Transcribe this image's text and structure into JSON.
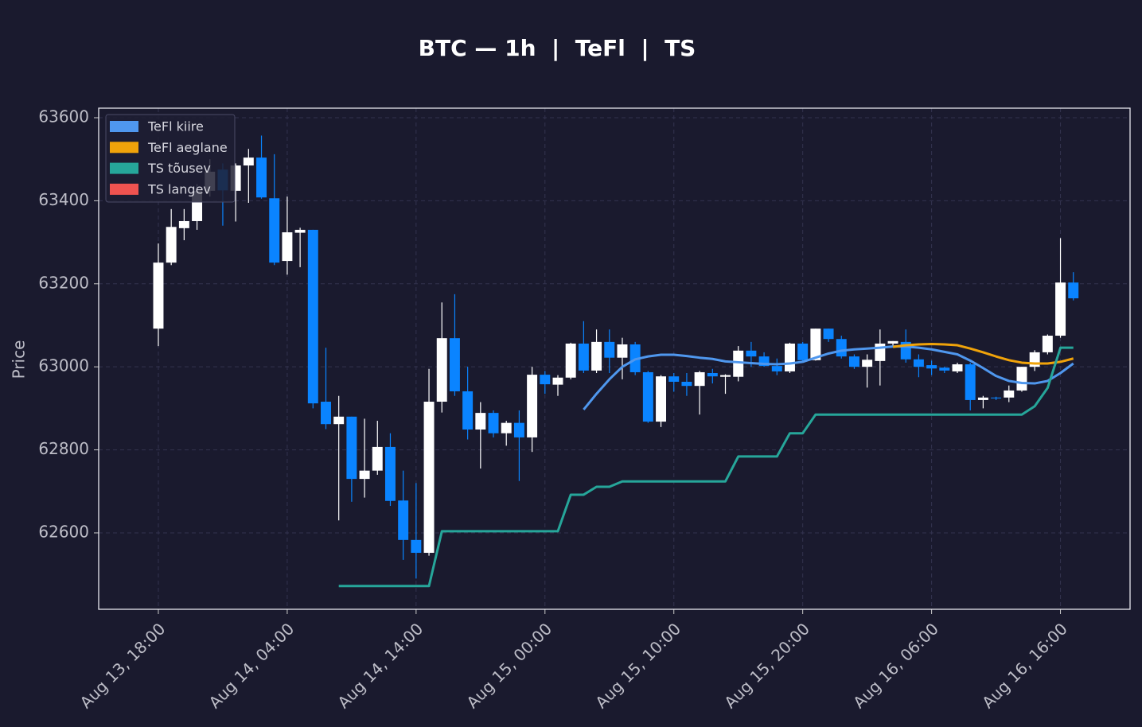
{
  "chart_data": {
    "type": "candlestick",
    "title": "BTC — 1h  |  TeFl  |  TS",
    "y_label": "Price",
    "xlim": [
      -4.63,
      75.4
    ],
    "ylim": [
      62416,
      63623
    ],
    "yticks": [
      62600,
      62800,
      63000,
      63200,
      63400,
      63600
    ],
    "xticks": [
      {
        "value": 0,
        "label": "Aug 13, 18:00"
      },
      {
        "value": 10,
        "label": "Aug 14, 04:00"
      },
      {
        "value": 20,
        "label": "Aug 14, 14:00"
      },
      {
        "value": 30,
        "label": "Aug 15, 00:00"
      },
      {
        "value": 40,
        "label": "Aug 15, 10:00"
      },
      {
        "value": 50,
        "label": "Aug 15, 20:00"
      },
      {
        "value": 60,
        "label": "Aug 16, 06:00"
      },
      {
        "value": 70,
        "label": "Aug 16, 16:00"
      }
    ],
    "grid": true,
    "legend": "upper left",
    "up_color": "#ffffff",
    "down_color": "#0a84ff",
    "open": [
      63092,
      63251,
      63334,
      63351,
      63424,
      63475,
      63424,
      63485,
      63504,
      63406,
      63255,
      63323,
      63330,
      62916,
      62862,
      62880,
      62730,
      62750,
      62807,
      62678,
      62583,
      62552,
      62916,
      63069,
      62941,
      62849,
      62889,
      62840,
      62865,
      62830,
      62981,
      62957,
      62974,
      63056,
      62991,
      63060,
      63022,
      63054,
      62987,
      62868,
      62977,
      62964,
      62954,
      62985,
      62976,
      62976,
      63039,
      63025,
      63002,
      62989,
      63056,
      63016,
      63092,
      63067,
      63025,
      63000,
      63014,
      63056,
      63060,
      63018,
      63004,
      62998,
      62989,
      63006,
      62920,
      62926,
      62926,
      62943,
      63000,
      63035,
      63075,
      63203
    ],
    "high": [
      63297,
      63380,
      63380,
      63440,
      63500,
      63490,
      63490,
      63525,
      63557,
      63512,
      63410,
      63335,
      63330,
      63046,
      62930,
      62880,
      62875,
      62870,
      62840,
      62750,
      62720,
      62995,
      63155,
      63175,
      63000,
      62915,
      62895,
      62870,
      62895,
      63000,
      62990,
      62980,
      63058,
      63110,
      63090,
      63090,
      63070,
      63060,
      62990,
      62980,
      62985,
      62985,
      62990,
      62995,
      62982,
      63050,
      63060,
      63035,
      63020,
      63058,
      63060,
      63092,
      63092,
      63075,
      63030,
      63030,
      63090,
      63062,
      63090,
      63030,
      63015,
      63000,
      63010,
      63010,
      62930,
      62928,
      62955,
      63000,
      63040,
      63078,
      63310,
      63228
    ],
    "low": [
      63050,
      63245,
      63305,
      63330,
      63410,
      63340,
      63350,
      63395,
      63405,
      63245,
      63222,
      63240,
      62900,
      62850,
      62630,
      62675,
      62685,
      62740,
      62665,
      62535,
      62490,
      62545,
      62890,
      62930,
      62825,
      62755,
      62830,
      62810,
      62725,
      62795,
      62935,
      62930,
      62970,
      62985,
      62985,
      62985,
      62970,
      62980,
      62865,
      62855,
      62940,
      62930,
      62885,
      62960,
      62935,
      62965,
      63000,
      63000,
      62980,
      62985,
      63010,
      63015,
      63060,
      63020,
      62995,
      62950,
      62955,
      63050,
      63010,
      62975,
      62980,
      62985,
      62985,
      62895,
      62900,
      62920,
      62915,
      62940,
      62990,
      63030,
      63070,
      63160
    ],
    "close": [
      63251,
      63337,
      63351,
      63424,
      63470,
      63425,
      63485,
      63504,
      63408,
      63251,
      63324,
      63330,
      62912,
      62862,
      62880,
      62730,
      62750,
      62807,
      62677,
      62583,
      62552,
      62916,
      63069,
      62941,
      62849,
      62889,
      62840,
      62865,
      62830,
      62981,
      62958,
      62974,
      63056,
      62991,
      63060,
      63022,
      63054,
      62987,
      62868,
      62977,
      62964,
      62954,
      62987,
      62977,
      62980,
      63039,
      63025,
      63002,
      62989,
      63056,
      63016,
      63092,
      63067,
      63025,
      63000,
      63017,
      63056,
      63062,
      63018,
      63000,
      62996,
      62991,
      63006,
      62920,
      62926,
      62924,
      62943,
      63000,
      63035,
      63075,
      63203,
      63165
    ],
    "series": [
      {
        "name": "TeFl kiire",
        "color": "#4f97ee",
        "values": [
          null,
          null,
          null,
          null,
          null,
          null,
          null,
          null,
          null,
          null,
          null,
          null,
          null,
          null,
          null,
          null,
          null,
          null,
          null,
          null,
          null,
          null,
          null,
          null,
          null,
          null,
          null,
          null,
          null,
          null,
          null,
          null,
          null,
          62897,
          62935,
          62970,
          63000,
          63018,
          63025,
          63029,
          63029,
          63026,
          63022,
          63019,
          63013,
          63011,
          63009,
          63007,
          63006,
          63008,
          63012,
          63022,
          63032,
          63039,
          63042,
          63044,
          63046,
          63049,
          63049,
          63046,
          63042,
          63036,
          63030,
          63015,
          62997,
          62978,
          62966,
          62961,
          62960,
          62966,
          62985,
          63008
        ]
      },
      {
        "name": "TeFl aeglane",
        "color": "#f0a30a",
        "values": [
          null,
          null,
          null,
          null,
          null,
          null,
          null,
          null,
          null,
          null,
          null,
          null,
          null,
          null,
          null,
          null,
          null,
          null,
          null,
          null,
          null,
          null,
          null,
          null,
          null,
          null,
          null,
          null,
          null,
          null,
          null,
          null,
          null,
          null,
          null,
          null,
          null,
          null,
          null,
          null,
          null,
          null,
          null,
          null,
          null,
          null,
          null,
          null,
          null,
          null,
          null,
          null,
          null,
          null,
          null,
          null,
          null,
          63048,
          63052,
          63054,
          63055,
          63054,
          63052,
          63044,
          63035,
          63025,
          63016,
          63010,
          63008,
          63008,
          63012,
          63020
        ]
      },
      {
        "name": "TS tõusev",
        "color": "#26a69a",
        "values": [
          null,
          null,
          null,
          null,
          null,
          null,
          null,
          null,
          null,
          null,
          null,
          null,
          null,
          null,
          62472,
          62472,
          62472,
          62472,
          62472,
          62472,
          62472,
          62472,
          62604,
          62604,
          62604,
          62604,
          62604,
          62604,
          62604,
          62604,
          62604,
          62604,
          62692,
          62692,
          62711,
          62711,
          62724,
          62724,
          62724,
          62724,
          62724,
          62724,
          62724,
          62724,
          62724,
          62784,
          62784,
          62784,
          62784,
          62840,
          62840,
          62885,
          62885,
          62885,
          62885,
          62885,
          62885,
          62885,
          62885,
          62885,
          62885,
          62885,
          62885,
          62885,
          62885,
          62885,
          62885,
          62885,
          62905,
          62949,
          63046,
          63046
        ]
      },
      {
        "name": "TS langev",
        "color": "#ef5350",
        "values": [
          null,
          null,
          null,
          null,
          null,
          null,
          null,
          null,
          null,
          null,
          null,
          null,
          null,
          null,
          null,
          null,
          null,
          null,
          null,
          null,
          null,
          null,
          null,
          null,
          null,
          null,
          null,
          null,
          null,
          null,
          null,
          null,
          null,
          null,
          null,
          null,
          null,
          null,
          null,
          null,
          null,
          null,
          null,
          null,
          null,
          null,
          null,
          null,
          null,
          null,
          null,
          null,
          null,
          null,
          null,
          null,
          null,
          null,
          null,
          null,
          null,
          null,
          null,
          null,
          null,
          null,
          null,
          null,
          null,
          null,
          null,
          null
        ]
      }
    ]
  }
}
